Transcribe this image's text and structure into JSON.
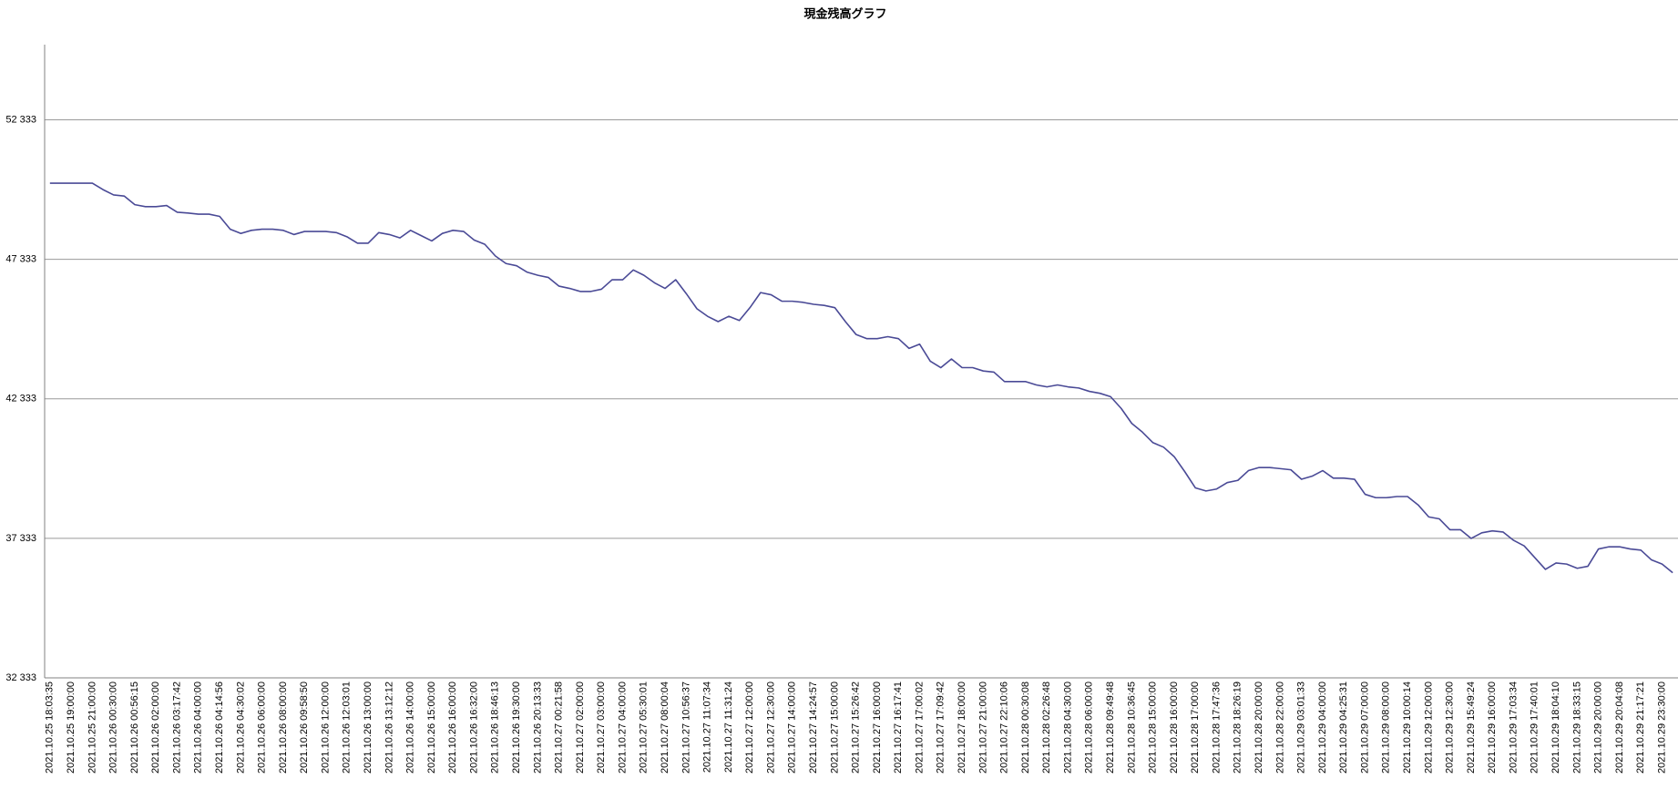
{
  "chart_data": {
    "type": "line",
    "title": "現金残高グラフ",
    "categories": [
      "2021.10.25 18:03:35",
      null,
      "2021.10.25 19:00:00",
      null,
      "2021.10.25 21:00:00",
      null,
      "2021.10.26 00:30:00",
      null,
      "2021.10.26 00:56:15",
      null,
      "2021.10.26 02:00:00",
      null,
      "2021.10.26 03:17:42",
      null,
      "2021.10.26 04:00:00",
      null,
      "2021.10.26 04:14:56",
      null,
      "2021.10.26 04:30:02",
      null,
      "2021.10.26 06:00:00",
      null,
      "2021.10.26 08:00:00",
      null,
      "2021.10.26 09:58:50",
      null,
      "2021.10.26 12:00:00",
      null,
      "2021.10.26 12:03:01",
      null,
      "2021.10.26 13:00:00",
      null,
      "2021.10.26 13:12:12",
      null,
      "2021.10.26 14:00:00",
      null,
      "2021.10.26 15:00:00",
      null,
      "2021.10.26 16:00:00",
      null,
      "2021.10.26 16:32:00",
      null,
      "2021.10.26 18:46:13",
      null,
      "2021.10.26 19:30:00",
      null,
      "2021.10.26 20:13:33",
      null,
      "2021.10.27 00:21:58",
      null,
      "2021.10.27 02:00:00",
      null,
      "2021.10.27 03:00:00",
      null,
      "2021.10.27 04:00:00",
      null,
      "2021.10.27 05:30:01",
      null,
      "2021.10.27 08:00:04",
      null,
      "2021.10.27 10:56:37",
      null,
      "2021.10.27 11:07:34",
      null,
      "2021.10.27 11:31:24",
      null,
      "2021.10.27 12:00:00",
      null,
      "2021.10.27 12:30:00",
      null,
      "2021.10.27 14:00:00",
      null,
      "2021.10.27 14:24:57",
      null,
      "2021.10.27 15:00:00",
      null,
      "2021.10.27 15:26:42",
      null,
      "2021.10.27 16:00:00",
      null,
      "2021.10.27 16:17:41",
      null,
      "2021.10.27 17:00:02",
      null,
      "2021.10.27 17:09:42",
      null,
      "2021.10.27 18:00:00",
      null,
      "2021.10.27 21:00:00",
      null,
      "2021.10.27 22:10:06",
      null,
      "2021.10.28 00:30:08",
      null,
      "2021.10.28 02:26:48",
      null,
      "2021.10.28 04:30:00",
      null,
      "2021.10.28 06:00:00",
      null,
      "2021.10.28 09:49:48",
      null,
      "2021.10.28 10:36:45",
      null,
      "2021.10.28 15:00:00",
      null,
      "2021.10.28 16:00:00",
      null,
      "2021.10.28 17:00:00",
      null,
      "2021.10.28 17:47:36",
      null,
      "2021.10.28 18:26:19",
      null,
      "2021.10.28 20:00:00",
      null,
      "2021.10.28 22:00:00",
      null,
      "2021.10.29 03:01:33",
      null,
      "2021.10.29 04:00:00",
      null,
      "2021.10.29 04:25:31",
      null,
      "2021.10.29 07:00:00",
      null,
      "2021.10.29 08:00:00",
      null,
      "2021.10.29 10:00:14",
      null,
      "2021.10.29 12:00:00",
      null,
      "2021.10.29 12:30:00",
      null,
      "2021.10.29 15:49:24",
      null,
      "2021.10.29 16:00:00",
      null,
      "2021.10.29 17:03:34",
      null,
      "2021.10.29 17:40:01",
      null,
      "2021.10.29 18:04:10",
      null,
      "2021.10.29 18:33:15",
      null,
      "2021.10.29 20:00:00",
      null,
      "2021.10.29 20:04:08",
      null,
      "2021.10.29 21:17:21",
      null,
      "2021.10.29 23:30:00",
      null
    ],
    "values": [
      50060,
      50060,
      50060,
      50060,
      50060,
      49830,
      49640,
      49600,
      49290,
      49220,
      49220,
      49260,
      49020,
      48990,
      48950,
      48950,
      48870,
      48410,
      48260,
      48370,
      48410,
      48410,
      48370,
      48220,
      48330,
      48330,
      48330,
      48290,
      48140,
      47910,
      47910,
      48290,
      48220,
      48100,
      48370,
      48180,
      47990,
      48260,
      48370,
      48330,
      48020,
      47870,
      47450,
      47180,
      47100,
      46870,
      46760,
      46680,
      46370,
      46290,
      46180,
      46180,
      46260,
      46600,
      46600,
      46950,
      46760,
      46490,
      46290,
      46600,
      46100,
      45560,
      45290,
      45100,
      45290,
      45140,
      45600,
      46140,
      46060,
      45830,
      45830,
      45790,
      45720,
      45680,
      45600,
      45100,
      44640,
      44490,
      44490,
      44560,
      44490,
      44140,
      44290,
      43680,
      43450,
      43760,
      43450,
      43450,
      43330,
      43290,
      42950,
      42950,
      42950,
      42830,
      42760,
      42830,
      42760,
      42720,
      42600,
      42530,
      42410,
      41990,
      41450,
      41140,
      40760,
      40600,
      40260,
      39720,
      39140,
      39030,
      39100,
      39330,
      39410,
      39760,
      39870,
      39870,
      39830,
      39790,
      39450,
      39560,
      39760,
      39490,
      39490,
      39450,
      38910,
      38790,
      38790,
      38830,
      38830,
      38530,
      38100,
      38030,
      37640,
      37640,
      37330,
      37530,
      37600,
      37560,
      37260,
      37060,
      36640,
      36220,
      36450,
      36410,
      36260,
      36330,
      36950,
      37030,
      37030,
      36950,
      36910,
      36560,
      36410,
      36100
    ],
    "color": "#4a4a96",
    "ylim": [
      32333,
      55025
    ],
    "yticks": [
      {
        "value": 32333,
        "label": "32 333"
      },
      {
        "value": 37333,
        "label": "37 333"
      },
      {
        "value": 42333,
        "label": "42 333"
      },
      {
        "value": 47333,
        "label": "47 333"
      },
      {
        "value": 52333,
        "label": "52 333"
      }
    ],
    "grid": true
  }
}
